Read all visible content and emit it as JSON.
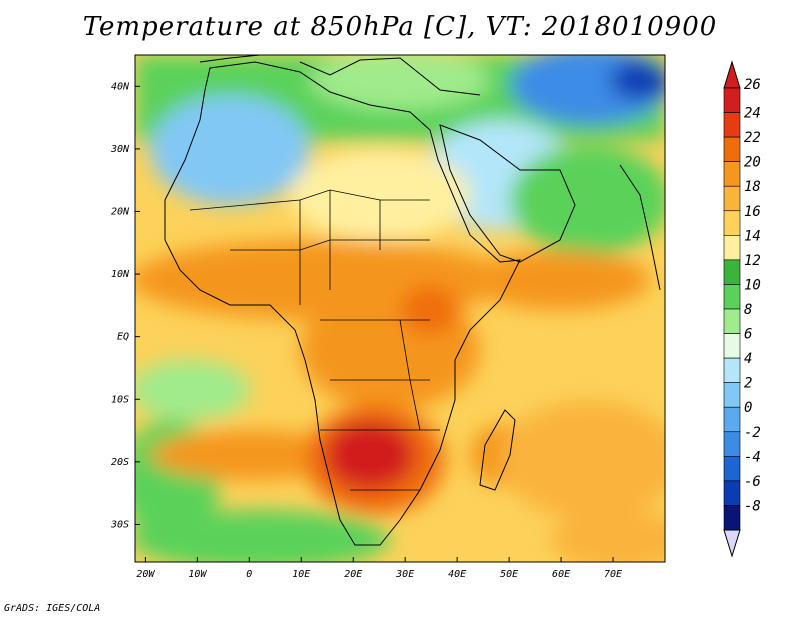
{
  "title": "Temperature at 850hPa [C], VT: 2018010900",
  "credit": "GrADS: IGES/COLA",
  "map": {
    "lon_range": [
      -22,
      80
    ],
    "lat_range": [
      -36,
      45
    ],
    "lon_ticks": [
      "20W",
      "10W",
      "0",
      "10E",
      "20E",
      "30E",
      "40E",
      "50E",
      "60E",
      "70E"
    ],
    "lon_tick_values": [
      -20,
      -10,
      0,
      10,
      20,
      30,
      40,
      50,
      60,
      70
    ],
    "lat_ticks": [
      "40N",
      "30N",
      "20N",
      "10N",
      "EQ",
      "10S",
      "20S",
      "30S"
    ],
    "lat_tick_values": [
      40,
      30,
      20,
      10,
      0,
      -10,
      -20,
      -30
    ]
  },
  "colorbar": {
    "labels": [
      "26",
      "24",
      "22",
      "20",
      "18",
      "16",
      "14",
      "12",
      "10",
      "8",
      "6",
      "4",
      "2",
      "0",
      "-2",
      "-4",
      "-6",
      "-8"
    ],
    "colors": [
      "#d21e1e",
      "#e63c14",
      "#f06e0a",
      "#f5961e",
      "#fab43c",
      "#fcd25a",
      "#fff0a0",
      "#3cb43c",
      "#5ad25a",
      "#a0eb8c",
      "#e6fae6",
      "#b4e6fa",
      "#82c8f5",
      "#5aaaf0",
      "#3c8ce6",
      "#1e64d2",
      "#0a3cb4",
      "#0a1478"
    ],
    "top_arrow_color": "#d21e1e",
    "bottom_arrow_color": "#dcd8f8"
  }
}
